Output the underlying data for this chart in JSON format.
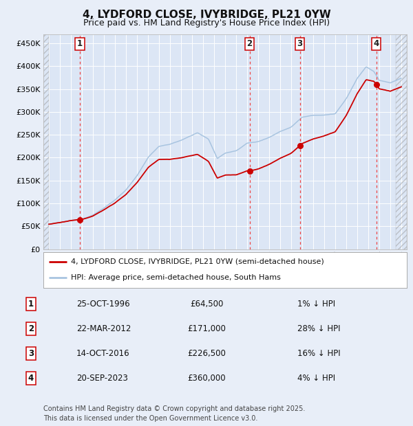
{
  "title": "4, LYDFORD CLOSE, IVYBRIDGE, PL21 0YW",
  "subtitle": "Price paid vs. HM Land Registry's House Price Index (HPI)",
  "title_fontsize": 11,
  "subtitle_fontsize": 9,
  "background_color": "#e8eef8",
  "plot_bg_color": "#dce6f5",
  "grid_color": "#ffffff",
  "hpi_line_color": "#a8c4e0",
  "price_line_color": "#cc0000",
  "sale_marker_color": "#cc0000",
  "dashed_line_color": "#ee4444",
  "xlim": [
    1993.5,
    2026.5
  ],
  "ylim": [
    0,
    470000
  ],
  "yticks": [
    0,
    50000,
    100000,
    150000,
    200000,
    250000,
    300000,
    350000,
    400000,
    450000
  ],
  "ytick_labels": [
    "£0",
    "£50K",
    "£100K",
    "£150K",
    "£200K",
    "£250K",
    "£300K",
    "£350K",
    "£400K",
    "£450K"
  ],
  "xticks": [
    1994,
    1995,
    1996,
    1997,
    1998,
    1999,
    2000,
    2001,
    2002,
    2003,
    2004,
    2005,
    2006,
    2007,
    2008,
    2009,
    2010,
    2011,
    2012,
    2013,
    2014,
    2015,
    2016,
    2017,
    2018,
    2019,
    2020,
    2021,
    2022,
    2023,
    2024,
    2025,
    2026
  ],
  "sales": [
    {
      "num": 1,
      "year": 1996.82,
      "price": 64500,
      "date": "25-OCT-1996",
      "pct": "1%",
      "dir": "↓"
    },
    {
      "num": 2,
      "year": 2012.23,
      "price": 171000,
      "date": "22-MAR-2012",
      "pct": "28%",
      "dir": "↓"
    },
    {
      "num": 3,
      "year": 2016.79,
      "price": 226500,
      "date": "14-OCT-2016",
      "pct": "16%",
      "dir": "↓"
    },
    {
      "num": 4,
      "year": 2023.72,
      "price": 360000,
      "date": "20-SEP-2023",
      "pct": "4%",
      "dir": "↓"
    }
  ],
  "legend_entries": [
    {
      "label": "4, LYDFORD CLOSE, IVYBRIDGE, PL21 0YW (semi-detached house)",
      "color": "#cc0000",
      "lw": 2
    },
    {
      "label": "HPI: Average price, semi-detached house, South Hams",
      "color": "#a8c4e0",
      "lw": 2
    }
  ],
  "footnote": "Contains HM Land Registry data © Crown copyright and database right 2025.\nThis data is licensed under the Open Government Licence v3.0.",
  "footnote_fontsize": 7
}
